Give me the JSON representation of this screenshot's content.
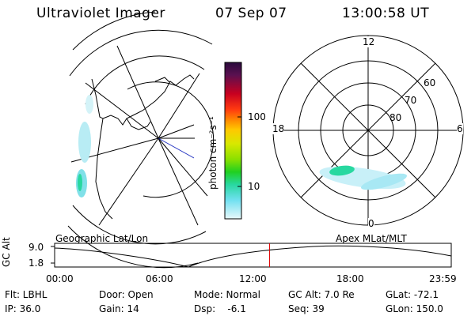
{
  "header": {
    "title": "Ultraviolet Imager",
    "date": "07 Sep 07",
    "time": "13:00:58 UT"
  },
  "colorbar": {
    "unit_label": "photon cm⁻²s⁻¹",
    "ticks": [
      "100",
      "10"
    ],
    "colors": [
      "#2a0a3c",
      "#6a0a38",
      "#c80020",
      "#ff3a10",
      "#ff8a00",
      "#ffc800",
      "#d8e800",
      "#8ae000",
      "#20d020",
      "#28d8a0",
      "#70e0f0",
      "#c8f0f8",
      "#e8f8fb"
    ]
  },
  "geo_panel": {
    "label": "Geographic Lat/Lon"
  },
  "mag_panel": {
    "label": "Apex  MLat/MLT",
    "mlt_labels": {
      "top": "12",
      "left": "18",
      "right": "6",
      "bottom": "0"
    },
    "lat_labels": [
      "60",
      "70",
      "80"
    ]
  },
  "timeline": {
    "axis_title": "GC Alt",
    "y_ticks": [
      "9.0",
      "1.8"
    ],
    "x_ticks": [
      "00:00",
      "06:00",
      "12:00",
      "18:00",
      "23:59"
    ],
    "current_time_fraction": 0.542
  },
  "info": {
    "row1": [
      {
        "label": "Flt: LBHL"
      },
      {
        "label": "Door: Open"
      },
      {
        "label": "Mode: Normal"
      },
      {
        "label": "GC Alt: 7.0 Re"
      },
      {
        "label": "GLat: -72.1"
      }
    ],
    "row2": [
      {
        "label": "IP: 36.0"
      },
      {
        "label": "Gain: 14"
      },
      {
        "label": "Dsp:    -6.1"
      },
      {
        "label": "Seq: 39"
      },
      {
        "label": "GLon: 150.0"
      }
    ]
  }
}
